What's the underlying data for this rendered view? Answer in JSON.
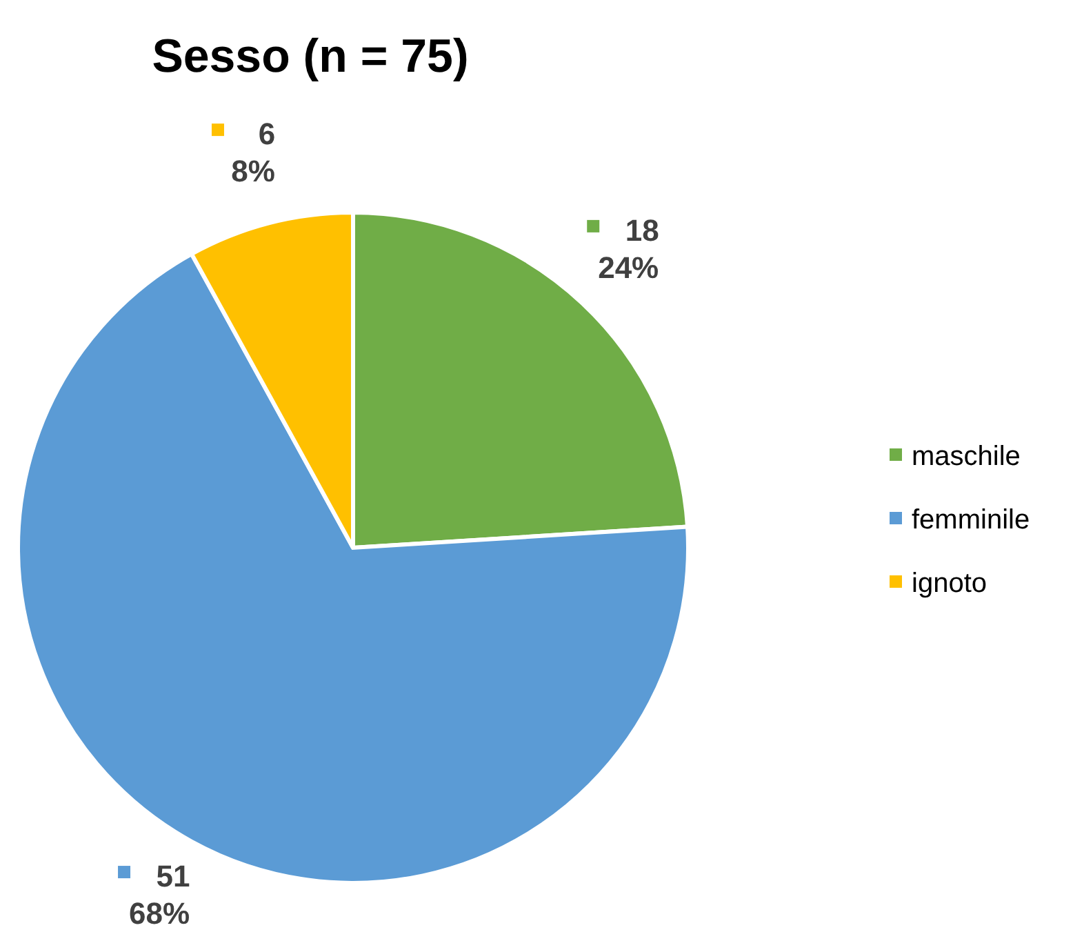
{
  "chart_data": {
    "type": "pie",
    "title": "Sesso (n = 75)",
    "categories": [
      "maschile",
      "femminile",
      "ignoto"
    ],
    "values": [
      18,
      51,
      6
    ],
    "colors": [
      "#70ad47",
      "#5b9bd5",
      "#ffc000"
    ],
    "value_labels": [
      "18\n24%",
      "51\n68%",
      "6\n8%"
    ],
    "legend": "right"
  }
}
